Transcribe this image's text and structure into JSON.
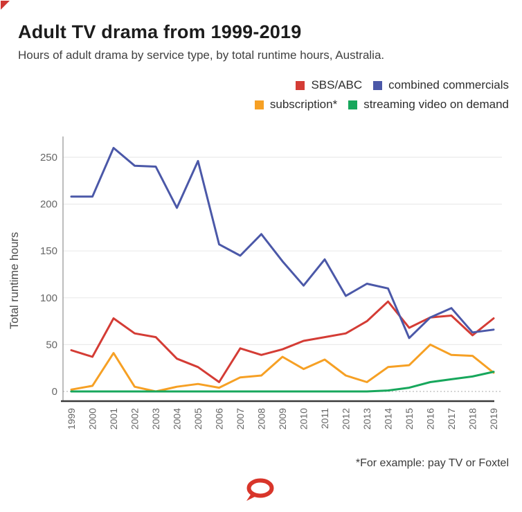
{
  "page": {
    "title": "Adult TV drama from 1999-2019",
    "subtitle": "Hours of adult drama by service type, by total runtime hours, Australia.",
    "footnote": "*For example: pay TV or Foxtel"
  },
  "colors": {
    "background": "#ffffff",
    "title_text": "#1c1c1c",
    "body_text": "#404040",
    "tick_text": "#666666",
    "gridline": "#eaeaea",
    "zero_line": "#bbbbbb",
    "axis_line": "#3a3a3a",
    "corner_mark": "#cf3732",
    "logo_red": "#d8352a"
  },
  "chart_data": {
    "type": "line",
    "title": "Adult TV drama from 1999-2019",
    "subtitle": "Hours of adult drama by service type, by total runtime hours, Australia.",
    "xlabel": "",
    "ylabel": "Total runtime hours",
    "x": [
      1999,
      2000,
      2001,
      2002,
      2003,
      2004,
      2005,
      2006,
      2007,
      2008,
      2009,
      2010,
      2011,
      2012,
      2013,
      2014,
      2015,
      2016,
      2017,
      2018,
      2019
    ],
    "series": [
      {
        "name": "SBS/ABC",
        "color": "#D43C35",
        "values": [
          44,
          37,
          78,
          62,
          58,
          35,
          26,
          10,
          46,
          39,
          45,
          54,
          58,
          62,
          75,
          96,
          68,
          79,
          81,
          60,
          78
        ]
      },
      {
        "name": "combined commercials",
        "color": "#4B58A8",
        "values": [
          208,
          208,
          260,
          241,
          240,
          196,
          246,
          157,
          145,
          168,
          139,
          113,
          141,
          102,
          115,
          110,
          57,
          79,
          89,
          63,
          66
        ]
      },
      {
        "name": "subscription*",
        "color": "#F6A024",
        "values": [
          2,
          6,
          41,
          5,
          0,
          5,
          8,
          4,
          15,
          17,
          37,
          24,
          34,
          17,
          10,
          26,
          28,
          50,
          39,
          38,
          20
        ]
      },
      {
        "name": "streaming video on demand",
        "color": "#17A75C",
        "values": [
          0,
          0,
          0,
          0,
          0,
          0,
          0,
          0,
          0,
          0,
          0,
          0,
          0,
          0,
          0,
          1,
          4,
          10,
          13,
          16,
          21
        ]
      }
    ],
    "legend_rows": [
      [
        0,
        1
      ],
      [
        2,
        3
      ]
    ],
    "ylim": [
      0,
      250
    ],
    "yticks": [
      0,
      50,
      100,
      150,
      200,
      250
    ],
    "grid": true,
    "zero_line_style": "dotted",
    "legend_position": "top-right",
    "x_tick_rotation": -90
  }
}
